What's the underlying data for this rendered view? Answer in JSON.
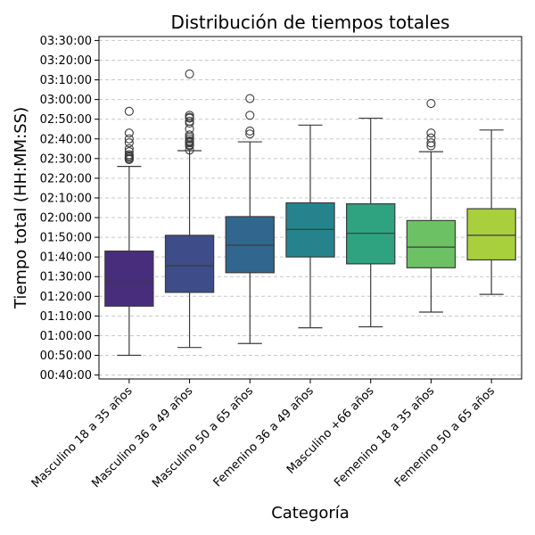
{
  "chart_data": {
    "type": "boxplot",
    "title": "Distribución de tiempos totales",
    "xlabel": "Categoría",
    "ylabel": "Tiempo total (HH:MM:SS)",
    "y_unit": "HH:MM:SS",
    "ylim": [
      "00:38:00",
      "03:32:00"
    ],
    "yticks": [
      "00:40:00",
      "00:50:00",
      "01:00:00",
      "01:10:00",
      "01:20:00",
      "01:30:00",
      "01:40:00",
      "01:50:00",
      "02:00:00",
      "02:10:00",
      "02:20:00",
      "02:30:00",
      "02:40:00",
      "02:50:00",
      "03:00:00",
      "03:10:00",
      "03:20:00",
      "03:30:00"
    ],
    "grid": "horizontal dashed",
    "categories": [
      "Masculino 18 a 35 años",
      "Masculino 36 a 49 años",
      "Masculino 50 a 65 años",
      "Femenino 36 a 49 años",
      "Masculino +66 años",
      "Femenino 18 a 35 años",
      "Femenino 50 a 65 años"
    ],
    "boxes": [
      {
        "category": "Masculino 18 a 35 años",
        "color": "#472D7B",
        "whisker_low": "00:50:00",
        "q1": "01:15:00",
        "median": "01:27:30",
        "q3": "01:43:00",
        "whisker_high": "02:26:00",
        "outliers": [
          "02:29:30",
          "02:30:00",
          "02:30:40",
          "02:31:20",
          "02:32:00",
          "02:33:30",
          "02:35:00",
          "02:38:00",
          "02:40:00",
          "02:43:00",
          "02:54:00"
        ]
      },
      {
        "category": "Masculino 36 a 49 años",
        "color": "#3E4C8A",
        "whisker_low": "00:54:00",
        "q1": "01:22:00",
        "median": "01:35:30",
        "q3": "01:51:00",
        "whisker_high": "02:34:00",
        "outliers": [
          "02:34:20",
          "02:36:30",
          "02:37:00",
          "02:38:00",
          "02:38:30",
          "02:39:00",
          "02:40:00",
          "02:41:00",
          "02:42:00",
          "02:45:00",
          "02:48:00",
          "02:49:00",
          "02:50:30",
          "02:51:00",
          "02:52:00",
          "03:13:00"
        ]
      },
      {
        "category": "Masculino 50 a 65 años",
        "color": "#31678E",
        "whisker_low": "00:56:00",
        "q1": "01:32:00",
        "median": "01:46:00",
        "q3": "02:00:30",
        "whisker_high": "02:38:30",
        "outliers": [
          "02:42:30",
          "02:44:00",
          "02:52:00",
          "03:00:30"
        ]
      },
      {
        "category": "Femenino 36 a 49 años",
        "color": "#26838E",
        "whisker_low": "01:04:00",
        "q1": "01:40:00",
        "median": "01:54:00",
        "q3": "02:07:30",
        "whisker_high": "02:47:00",
        "outliers": []
      },
      {
        "category": "Masculino +66 años",
        "color": "#2FA27F",
        "whisker_low": "01:04:30",
        "q1": "01:36:30",
        "median": "01:52:00",
        "q3": "02:07:00",
        "whisker_high": "02:50:30",
        "outliers": []
      },
      {
        "category": "Femenino 18 a 35 años",
        "color": "#6CC164",
        "whisker_low": "01:12:00",
        "q1": "01:34:30",
        "median": "01:45:00",
        "q3": "01:58:30",
        "whisker_high": "02:33:30",
        "outliers": [
          "02:36:30",
          "02:38:00",
          "02:40:30",
          "02:43:00",
          "02:58:00"
        ]
      },
      {
        "category": "Femenino 50 a 65 años",
        "color": "#A8CF3C",
        "whisker_low": "01:21:00",
        "q1": "01:38:30",
        "median": "01:51:00",
        "q3": "02:04:30",
        "whisker_high": "02:44:30",
        "outliers": []
      }
    ]
  }
}
